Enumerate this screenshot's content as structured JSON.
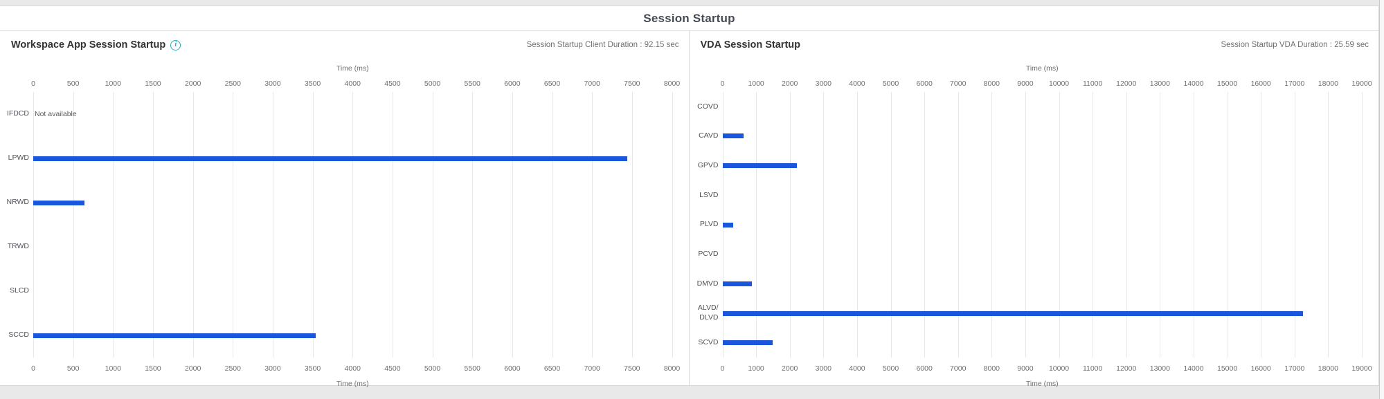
{
  "page": {
    "title": "Session Startup"
  },
  "colors": {
    "bar": "#1a56db",
    "info_icon": "#2fa8b8"
  },
  "panels": [
    {
      "title": "Workspace App Session Startup",
      "duration_label": "Session Startup Client Duration : 92.15 sec"
    },
    {
      "title": "VDA Session Startup",
      "duration_label": "Session Startup VDA Duration : 25.59 sec"
    }
  ],
  "chart_data": [
    {
      "type": "bar",
      "orientation": "horizontal",
      "title": "Workspace App Session Startup",
      "xlabel": "Time (ms)",
      "xlabel_position": "top-and-bottom",
      "xlim": [
        0,
        8000
      ],
      "xstep": 500,
      "xticks": [
        0,
        500,
        1000,
        1500,
        2000,
        2500,
        3000,
        3500,
        4000,
        4500,
        5000,
        5500,
        6000,
        6500,
        7000,
        7500,
        8000
      ],
      "grid": true,
      "categories": [
        "IFDCD",
        "LPWD",
        "NRWD",
        "TRWD",
        "SLCD",
        "SCCD"
      ],
      "values": [
        null,
        7440,
        640,
        null,
        null,
        3540
      ],
      "annotations": [
        {
          "category": "IFDCD",
          "text": "Not available"
        }
      ]
    },
    {
      "type": "bar",
      "orientation": "horizontal",
      "title": "VDA Session Startup",
      "xlabel": "Time (ms)",
      "xlabel_position": "top-and-bottom",
      "xlim": [
        0,
        19000
      ],
      "xstep": 1000,
      "xticks": [
        0,
        1000,
        2000,
        3000,
        4000,
        5000,
        6000,
        7000,
        8000,
        9000,
        10000,
        11000,
        12000,
        13000,
        14000,
        15000,
        16000,
        17000,
        18000,
        19000
      ],
      "grid": true,
      "categories": [
        "COVD",
        "CAVD",
        "GPVD",
        "LSVD",
        "PLVD",
        "PCVD",
        "DMVD",
        "ALVD/\nDLVD",
        "SCVD"
      ],
      "values": [
        null,
        630,
        2220,
        null,
        310,
        null,
        875,
        17250,
        1500
      ],
      "annotations": []
    }
  ]
}
